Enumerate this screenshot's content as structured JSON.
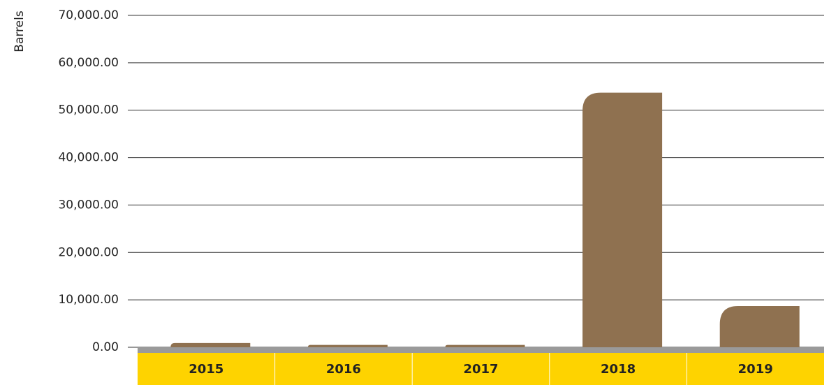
{
  "chart_data": {
    "type": "bar",
    "y_label": "Barrels",
    "categories": [
      "2015",
      "2016",
      "2017",
      "2018",
      "2019"
    ],
    "values": [
      900,
      500,
      500,
      53700,
      8700
    ],
    "color": "#8f7150",
    "ylim": [
      0,
      70000
    ],
    "yticks": [
      {
        "value": 0,
        "label": "0.00"
      },
      {
        "value": 10000,
        "label": "10,000.00"
      },
      {
        "value": 20000,
        "label": "20,000.00"
      },
      {
        "value": 30000,
        "label": "30,000.00"
      },
      {
        "value": 40000,
        "label": "40,000.00"
      },
      {
        "value": 50000,
        "label": "50,000.00"
      },
      {
        "value": 60000,
        "label": "60,000.00"
      },
      {
        "value": 70000,
        "label": "70,000.00"
      }
    ],
    "grid": true
  }
}
